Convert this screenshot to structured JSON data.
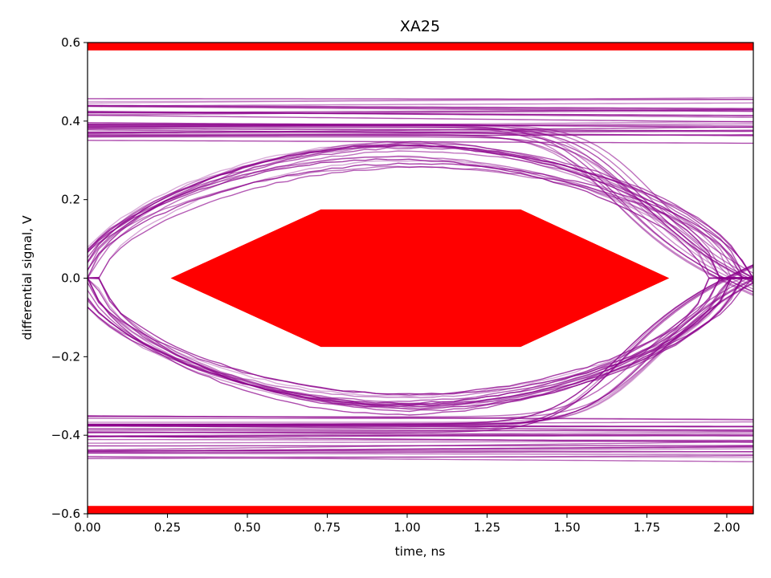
{
  "chart_data": {
    "type": "line",
    "title": "XA25",
    "xlabel": "time, ns",
    "ylabel": "differential signal, V",
    "xlim": [
      0,
      2.083
    ],
    "ylim": [
      -0.6,
      0.6
    ],
    "xticks": [
      "0.00",
      "0.25",
      "0.50",
      "0.75",
      "1.00",
      "1.25",
      "1.50",
      "1.75",
      "2.00"
    ],
    "xtick_values": [
      0,
      0.25,
      0.5,
      0.75,
      1.0,
      1.25,
      1.5,
      1.75,
      2.0
    ],
    "yticks": [
      "0.6",
      "0.4",
      "0.2",
      "0.0",
      "−0.2",
      "−0.4",
      "−0.6"
    ],
    "ytick_values": [
      0.6,
      0.4,
      0.2,
      0.0,
      -0.2,
      -0.4,
      -0.6
    ],
    "grid": false,
    "eye_diagram": {
      "trace_color": "#8b008b",
      "unit_interval_ns": 2.083,
      "crossing_times_ns": [
        0.0,
        2.0
      ],
      "level_bands": {
        "high": [
          0.35,
          0.46
        ],
        "low": [
          -0.46,
          -0.35
        ]
      },
      "eye_inner_amplitude": 0.28
    },
    "mask": {
      "color": "#ff0000",
      "center_polygon": [
        [
          0.26,
          0.0
        ],
        [
          0.73,
          0.175
        ],
        [
          1.355,
          0.175
        ],
        [
          1.82,
          0.0
        ],
        [
          1.355,
          -0.175
        ],
        [
          0.73,
          -0.175
        ]
      ],
      "top_band": [
        0.58,
        0.6
      ],
      "bottom_band": [
        -0.6,
        -0.58
      ]
    }
  }
}
